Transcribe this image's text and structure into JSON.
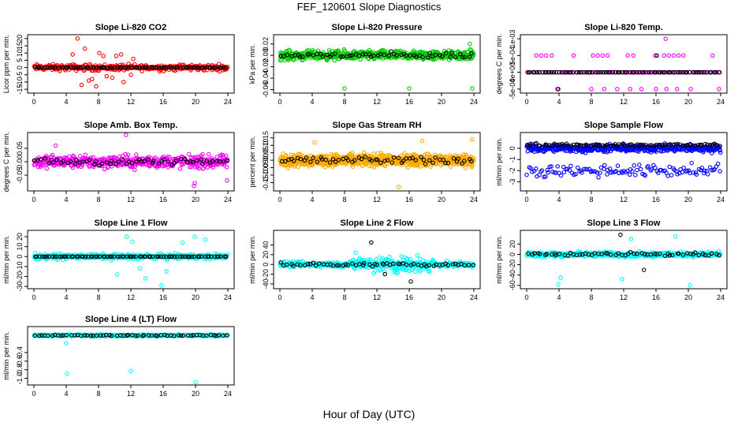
{
  "figure": {
    "title": "FEF_120601  Slope Diagnostics",
    "xlabel": "Hour of Day (UTC)"
  },
  "chart_data": [
    {
      "type": "scatter",
      "title": "Slope Li-820 CO2",
      "ylabel": "Licor ppm per min.",
      "xlim": [
        0,
        24
      ],
      "xticks": [
        0,
        4,
        8,
        12,
        16,
        20,
        24
      ],
      "ylim": [
        -16,
        21
      ],
      "yticks": [
        -15,
        -10,
        -5,
        0,
        5,
        10,
        15,
        20
      ],
      "ytick_labels": [
        "-15",
        "-10",
        "-5",
        "0",
        "5",
        "10",
        "15",
        "20"
      ],
      "color": "#ff0000",
      "series": [
        {
          "name": "points",
          "color": "#ff0000",
          "spread": 3.2,
          "count": 300,
          "x_range": [
            0,
            24
          ]
        },
        {
          "name": "outliers",
          "color": "#ff0000",
          "x": [
            5.4,
            4.8,
            6.3,
            7.2,
            8.1,
            9.0,
            10.2,
            11.1,
            12.3,
            5.9,
            6.8,
            8.6,
            9.7,
            10.8,
            12.0,
            7.7
          ],
          "y": [
            20,
            9,
            13,
            -8,
            10,
            -6,
            8,
            -10,
            6,
            -12,
            -9,
            8,
            -7,
            9,
            -5,
            -13
          ]
        },
        {
          "name": "black",
          "color": "#000000",
          "spread": 0.2,
          "count": 80,
          "x_range": [
            0,
            24
          ]
        }
      ]
    },
    {
      "type": "scatter",
      "title": "Slope Li-820 Pressure",
      "ylabel": "kPa per min.",
      "xlim": [
        0,
        24
      ],
      "xticks": [
        0,
        4,
        8,
        12,
        16,
        20,
        24
      ],
      "ylim": [
        -0.062,
        0.032
      ],
      "yticks": [
        -0.06,
        -0.04,
        -0.02,
        0.0,
        0.02
      ],
      "ytick_labels": [
        "-0.06",
        "-0.04",
        "-0.02",
        "0.00",
        "0.02"
      ],
      "color": "#00cc00",
      "series": [
        {
          "name": "points",
          "color": "#00cc00",
          "spread": 0.012,
          "count": 500,
          "x_range": [
            0,
            24
          ]
        },
        {
          "name": "outliers",
          "color": "#00cc00",
          "x": [
            8.0,
            16.0,
            23.8,
            23.5
          ],
          "y": [
            -0.058,
            -0.058,
            -0.058,
            0.02
          ]
        },
        {
          "name": "black",
          "color": "#000000",
          "spread": 0.008,
          "count": 60,
          "x_range": [
            0,
            24
          ]
        }
      ]
    },
    {
      "type": "scatter",
      "title": "Slope Li-820 Temp.",
      "ylabel": "degrees C per min.",
      "xlim": [
        0,
        24
      ],
      "xticks": [
        0,
        4,
        8,
        12,
        16,
        20,
        24
      ],
      "ylim": [
        -0.00055,
        0.00105
      ],
      "yticks": [
        -0.0005,
        0.0,
        0.0005,
        0.001
      ],
      "ytick_labels": [
        "-5e-04",
        "0e+00",
        "5e-04",
        "1e-03"
      ],
      "color": "#ff00ff",
      "series": [
        {
          "name": "levels",
          "color": "#ff00ff",
          "x": [
            1.2,
            1.8,
            2.4,
            3.1,
            5.8,
            8.2,
            8.8,
            9.4,
            10.0,
            12.5,
            13.2,
            15.9,
            17.0,
            17.6,
            18.2,
            18.8,
            19.4,
            23.0
          ],
          "y": [
            0.0005,
            0.0005,
            0.0005,
            0.0005,
            0.0005,
            0.0005,
            0.0005,
            0.0005,
            0.0005,
            0.0005,
            0.0005,
            0.0005,
            0.0005,
            0.0005,
            0.0005,
            0.0005,
            0.0005,
            0.0005
          ]
        },
        {
          "name": "low",
          "color": "#ff00ff",
          "x": [
            3.8,
            8.0,
            9.6,
            11.2,
            12.8,
            14.2,
            16.0,
            17.3,
            18.6,
            20.3,
            23.8
          ],
          "y": [
            -0.0005,
            -0.0005,
            -0.0005,
            -0.0005,
            -0.0005,
            -0.0005,
            -0.0005,
            -0.0005,
            -0.0005,
            -0.0005,
            -0.0005
          ]
        },
        {
          "name": "high",
          "color": "#ff00ff",
          "x": [
            17.2
          ],
          "y": [
            0.001
          ]
        },
        {
          "name": "zero",
          "color": "#ff00ff",
          "spread": 0.0,
          "count": 80,
          "x_range": [
            0,
            24
          ]
        },
        {
          "name": "black",
          "color": "#000000",
          "spread": 0.0,
          "count": 80,
          "x_range": [
            0,
            24
          ]
        },
        {
          "name": "black-extra",
          "color": "#000000",
          "x": [
            16.1,
            3.9
          ],
          "y": [
            0.0005,
            -0.0005
          ]
        }
      ]
    },
    {
      "type": "scatter",
      "title": "Slope Amb. Box Temp.",
      "ylabel": "degrees C per min.",
      "xlim": [
        0,
        24
      ],
      "xticks": [
        0,
        4,
        8,
        12,
        16,
        20,
        24
      ],
      "ylim": [
        -0.1,
        0.1
      ],
      "yticks": [
        -0.05,
        0.0,
        0.05
      ],
      "ytick_labels": [
        "-0.05",
        "0.00",
        "0.05"
      ],
      "color": "#ff00ff",
      "series": [
        {
          "name": "points",
          "color": "#ff00ff",
          "spread": 0.035,
          "count": 450,
          "x_range": [
            0,
            24
          ]
        },
        {
          "name": "outliers",
          "color": "#ff00ff",
          "x": [
            11.4,
            19.8,
            19.9,
            2.7,
            23.9
          ],
          "y": [
            0.1,
            -0.09,
            -0.08,
            0.06,
            -0.07
          ]
        },
        {
          "name": "black",
          "color": "#000000",
          "spread": 0.02,
          "count": 60,
          "x_range": [
            0,
            24
          ]
        }
      ]
    },
    {
      "type": "scatter",
      "title": "Slope Gas Stream RH",
      "ylabel": "percent per min.",
      "xlim": [
        0,
        24
      ],
      "xticks": [
        0,
        4,
        8,
        12,
        16,
        20,
        24
      ],
      "ylim": [
        -0.19,
        0.17
      ],
      "yticks": [
        -0.15,
        -0.1,
        -0.05,
        0.0,
        0.05,
        0.1,
        0.15
      ],
      "ytick_labels": [
        "-0.15",
        "-0.10",
        "-0.05",
        "0.00",
        "0.05",
        "0.10",
        "0.15"
      ],
      "color": "#ffaa00",
      "series": [
        {
          "name": "points",
          "color": "#ffaa00",
          "spread": 0.06,
          "count": 700,
          "x_range": [
            0,
            24
          ]
        },
        {
          "name": "outliers",
          "color": "#ffaa00",
          "x": [
            14.7,
            4.3,
            17.6,
            23.8
          ],
          "y": [
            -0.18,
            0.12,
            0.13,
            0.14
          ]
        },
        {
          "name": "black",
          "color": "#000000",
          "spread": 0.04,
          "count": 60,
          "x_range": [
            0,
            24
          ]
        }
      ]
    },
    {
      "type": "scatter",
      "title": "Slope Sample Flow",
      "ylabel": "ml/min per min.",
      "xlim": [
        0,
        24
      ],
      "xticks": [
        0,
        4,
        8,
        12,
        16,
        20,
        24
      ],
      "ylim": [
        -3.6,
        1.2
      ],
      "yticks": [
        -3,
        -2,
        -1,
        0
      ],
      "ytick_labels": [
        "-3",
        "-2",
        "-1",
        "0"
      ],
      "color": "#0000ff",
      "series": [
        {
          "name": "points",
          "color": "#0000ff",
          "spread": 0.5,
          "count": 450,
          "x_range": [
            0,
            24
          ]
        },
        {
          "name": "low",
          "color": "#0000ff",
          "spread": 0.8,
          "offset": -2.0,
          "count": 120,
          "x_range": [
            0,
            24
          ]
        },
        {
          "name": "black",
          "color": "#000000",
          "spread": 0.2,
          "offset": 0.3,
          "count": 80,
          "x_range": [
            0,
            24
          ]
        }
      ]
    },
    {
      "type": "scatter",
      "title": "Slope Line 1 Flow",
      "ylabel": "ml/min per min.",
      "xlim": [
        0,
        24
      ],
      "xticks": [
        0,
        4,
        8,
        12,
        16,
        20,
        24
      ],
      "ylim": [
        -30,
        24
      ],
      "yticks": [
        -30,
        -20,
        -10,
        0,
        10,
        20
      ],
      "ytick_labels": [
        "-30",
        "-20",
        "-10",
        "0",
        "10",
        "20"
      ],
      "color": "#00ffff",
      "series": [
        {
          "name": "points",
          "color": "#00ffff",
          "spread": 4,
          "count": 350,
          "x_range": [
            0,
            24
          ]
        },
        {
          "name": "outliers",
          "color": "#00ffff",
          "x": [
            11.5,
            12.2,
            13.8,
            15.8,
            10.3,
            18.4,
            19.9,
            21.2,
            13.1,
            16.4
          ],
          "y": [
            20,
            15,
            -22,
            -29,
            -18,
            14,
            20,
            17,
            -12,
            -15
          ]
        },
        {
          "name": "black",
          "color": "#000000",
          "spread": 0.0,
          "count": 80,
          "x_range": [
            0,
            24
          ]
        }
      ]
    },
    {
      "type": "scatter",
      "title": "Slope Line 2 Flow",
      "ylabel": "ml/min per min.",
      "xlim": [
        0,
        24
      ],
      "xticks": [
        0,
        4,
        8,
        12,
        16,
        20,
        24
      ],
      "ylim": [
        -45,
        65
      ],
      "yticks": [
        -40,
        -20,
        0,
        20,
        40
      ],
      "ytick_labels": [
        "-40",
        "-20",
        "0",
        "20",
        "40"
      ],
      "color": "#00ffff",
      "series": [
        {
          "name": "points",
          "color": "#00ffff",
          "spread": 8,
          "count": 400,
          "x_range": [
            0,
            24
          ]
        },
        {
          "name": "wide",
          "color": "#00ffff",
          "spread": 25,
          "count": 120,
          "x_range": [
            9,
            19
          ]
        },
        {
          "name": "black",
          "color": "#000000",
          "spread": 6,
          "count": 60,
          "x_range": [
            0,
            24
          ]
        },
        {
          "name": "black-extra",
          "color": "#000000",
          "x": [
            11.3,
            13.0,
            16.2
          ],
          "y": [
            45,
            -20,
            -35
          ]
        }
      ]
    },
    {
      "type": "scatter",
      "title": "Slope Line 3 Flow",
      "ylabel": "ml/min per min.",
      "xlim": [
        0,
        24
      ],
      "xticks": [
        0,
        4,
        8,
        12,
        16,
        20,
        24
      ],
      "ylim": [
        -62,
        42
      ],
      "yticks": [
        -60,
        -40,
        -20,
        0,
        20
      ],
      "ytick_labels": [
        "-60",
        "-40",
        "-20",
        "0",
        "20"
      ],
      "color": "#00ffff",
      "series": [
        {
          "name": "points",
          "color": "#00ffff",
          "spread": 7,
          "count": 450,
          "x_range": [
            0,
            24
          ]
        },
        {
          "name": "outliers",
          "color": "#00ffff",
          "x": [
            3.9,
            4.2,
            20.2,
            12.9,
            18.4,
            11.8
          ],
          "y": [
            -58,
            -45,
            -60,
            30,
            35,
            -48
          ]
        },
        {
          "name": "black",
          "color": "#000000",
          "spread": 5,
          "count": 60,
          "x_range": [
            0,
            24
          ]
        },
        {
          "name": "black-extra",
          "color": "#000000",
          "x": [
            11.6,
            14.5
          ],
          "y": [
            38,
            -30
          ]
        }
      ]
    },
    {
      "type": "scatter",
      "title": "Slope Line 4 (LT) Flow",
      "ylabel": "ml/min per min.",
      "xlim": [
        0,
        24
      ],
      "xticks": [
        0,
        4,
        8,
        12,
        16,
        20,
        24
      ],
      "ylim": [
        -1.1,
        0.15
      ],
      "yticks": [
        -1.0,
        -0.8,
        -0.6,
        -0.4
      ],
      "ytick_labels": [
        "-1.0",
        "-0.8",
        "-0.6",
        "-0.4"
      ],
      "color": "#00ffff",
      "series": [
        {
          "name": "points",
          "color": "#00ffff",
          "spread": 0.03,
          "count": 400,
          "x_range": [
            0,
            24
          ]
        },
        {
          "name": "outliers",
          "color": "#00ffff",
          "x": [
            4.1,
            12.0,
            20.0,
            4.0
          ],
          "y": [
            -0.89,
            -0.83,
            -1.09,
            -0.18
          ]
        },
        {
          "name": "black",
          "color": "#000000",
          "spread": 0.02,
          "count": 60,
          "x_range": [
            0,
            24
          ]
        }
      ]
    }
  ]
}
